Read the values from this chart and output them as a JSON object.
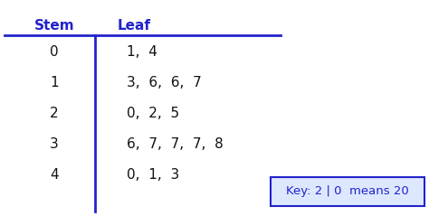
{
  "stem_header": "Stem",
  "leaf_header": "Leaf",
  "stems": [
    "0",
    "1",
    "2",
    "3",
    "4"
  ],
  "leaves": [
    "1,  4",
    "3,  6,  6,  7",
    "0,  2,  5",
    "6,  7,  7,  7,  8",
    "0,  1,  3"
  ],
  "key_text": "Key: 2 | 0  means 20",
  "header_color": "#2222CC",
  "data_text_color": "#111111",
  "line_color": "#2222CC",
  "bg_color": "#FFFFFF",
  "key_box_bg": "#DDE8FF",
  "key_text_color": "#2222CC",
  "header_fontsize": 11,
  "data_fontsize": 11,
  "key_fontsize": 9.5
}
